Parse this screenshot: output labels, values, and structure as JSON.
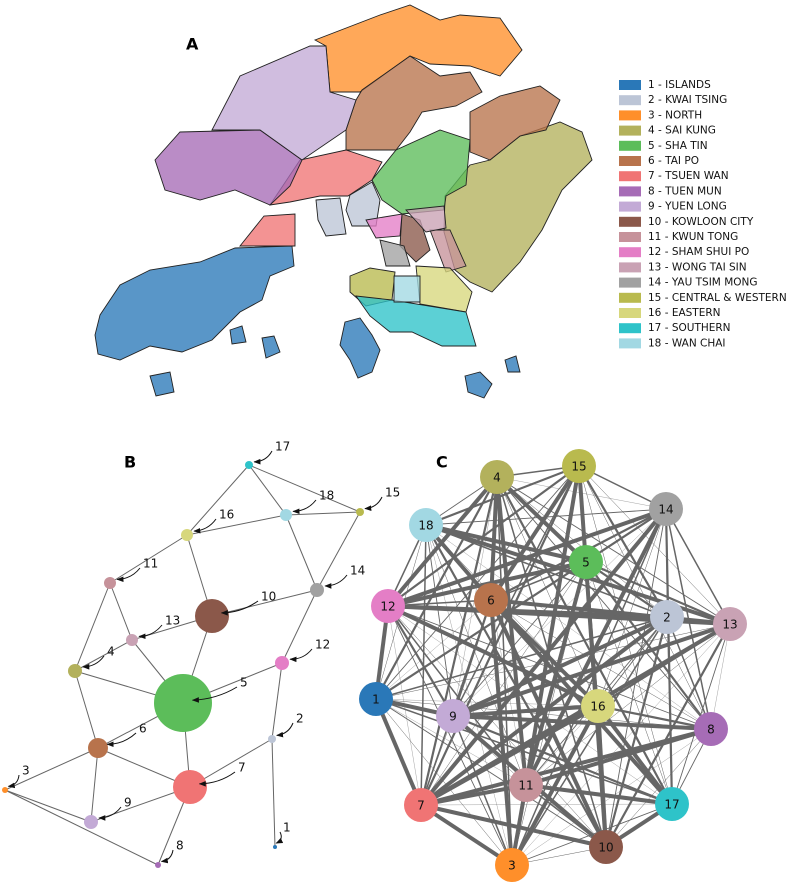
{
  "panels": {
    "a": "A",
    "b": "B",
    "c": "C"
  },
  "legend": [
    {
      "label": "1 - ISLANDS",
      "color": "#2a78b8"
    },
    {
      "label": "2 - KWAI TSING",
      "color": "#bcc5d6"
    },
    {
      "label": "3 - NORTH",
      "color": "#ff8f2a"
    },
    {
      "label": "4 - SAI KUNG",
      "color": "#b3b15c"
    },
    {
      "label": "5 - SHA TIN",
      "color": "#5cbd5a"
    },
    {
      "label": "6 - TAI PO",
      "color": "#b8734c"
    },
    {
      "label": "7 - TSUEN WAN",
      "color": "#f07474"
    },
    {
      "label": "8 - TUEN MUN",
      "color": "#a66cb6"
    },
    {
      "label": "9 - YUEN LONG",
      "color": "#c3aad6"
    },
    {
      "label": "10 - KOWLOON CITY",
      "color": "#8b584a"
    },
    {
      "label": "11 - KWUN TONG",
      "color": "#c6929a"
    },
    {
      "label": "12 - SHAM SHUI PO",
      "color": "#e47ec6"
    },
    {
      "label": "13 - WONG TAI SIN",
      "color": "#c9a2b4"
    },
    {
      "label": "14 - YAU TSIM MONG",
      "color": "#a1a1a1"
    },
    {
      "label": "15 - CENTRAL & WESTERN",
      "color": "#b9ba4e"
    },
    {
      "label": "16 - EASTERN",
      "color": "#d7d77c"
    },
    {
      "label": "17 - SOUTHERN",
      "color": "#2ec3c9"
    },
    {
      "label": "18 - WAN CHAI",
      "color": "#a2d8e3"
    }
  ],
  "network_b": {
    "labels": [
      "1",
      "2",
      "3",
      "4",
      "5",
      "6",
      "7",
      "8",
      "9",
      "10",
      "11",
      "12",
      "13",
      "14",
      "15",
      "16",
      "17",
      "18"
    ]
  },
  "network_c": {
    "labels": [
      "1",
      "2",
      "3",
      "4",
      "5",
      "6",
      "7",
      "8",
      "9",
      "10",
      "11",
      "12",
      "13",
      "14",
      "15",
      "16",
      "17",
      "18"
    ]
  }
}
